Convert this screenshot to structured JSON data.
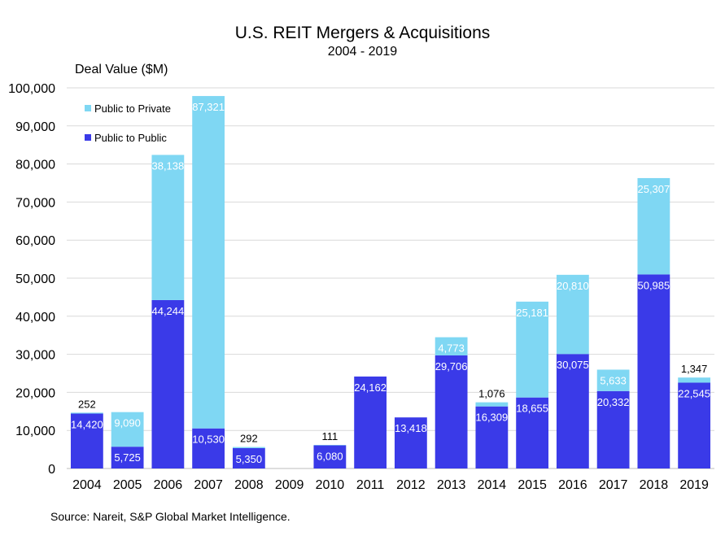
{
  "title": "U.S. REIT Mergers & Acquisitions",
  "subtitle": "2004 - 2019",
  "source": "Source: Nareit, S&P Global Market Intelligence.",
  "chart_data": {
    "type": "bar",
    "stacked": true,
    "title": "U.S. REIT Mergers & Acquisitions",
    "subtitle": "2004 - 2019",
    "ylabel": "Deal Value ($M)",
    "xlabel": "",
    "ylim": [
      0,
      100000
    ],
    "yticks": [
      0,
      10000,
      20000,
      30000,
      40000,
      50000,
      60000,
      70000,
      80000,
      90000,
      100000
    ],
    "ytick_labels": [
      "0",
      "10,000",
      "20,000",
      "30,000",
      "40,000",
      "50,000",
      "60,000",
      "70,000",
      "80,000",
      "90,000",
      "100,000"
    ],
    "grid": "horizontal",
    "legend_position": "top-left",
    "categories": [
      "2004",
      "2005",
      "2006",
      "2007",
      "2008",
      "2009",
      "2010",
      "2011",
      "2012",
      "2013",
      "2014",
      "2015",
      "2016",
      "2017",
      "2018",
      "2019"
    ],
    "series": [
      {
        "name": "Public to Public",
        "color": "#3a3ae8",
        "values": [
          14420,
          5725,
          44244,
          10530,
          5350,
          0,
          6080,
          24162,
          13418,
          29706,
          16309,
          18655,
          30075,
          20332,
          50985,
          22545
        ],
        "labels": [
          "14,420",
          "5,725",
          "44,244",
          "10,530",
          "5,350",
          "",
          "6,080",
          "24,162",
          "13,418",
          "29,706",
          "16,309",
          "18,655",
          "30,075",
          "20,332",
          "50,985",
          "22,545"
        ]
      },
      {
        "name": "Public to Private",
        "color": "#7fd7f3",
        "values": [
          252,
          9090,
          38138,
          87321,
          292,
          0,
          111,
          0,
          0,
          4773,
          1076,
          25181,
          20810,
          5633,
          25307,
          1347
        ],
        "labels": [
          "252",
          "9,090",
          "38,138",
          "87,321",
          "292",
          "",
          "111",
          "",
          "",
          "4,773",
          "1,076",
          "25,181",
          "20,810",
          "5,633",
          "25,307",
          "1,347"
        ]
      }
    ]
  }
}
